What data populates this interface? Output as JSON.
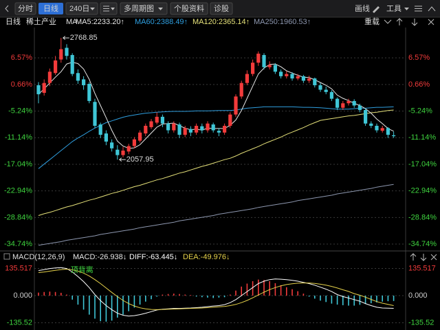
{
  "toolbar": {
    "left": [
      "分时",
      "日线",
      "240日",
      "多周期图",
      "个股资料",
      "诊股"
    ],
    "right": [
      "画线",
      "工具"
    ]
  },
  "header": {
    "period": "日线",
    "name": "稀土产业",
    "reload": "重载"
  },
  "chart_data": [
    {
      "type": "candlestick",
      "indicator": "MA",
      "up_color": "#f23b3b",
      "down_color": "#3fc6d6",
      "ohlc": [
        [
          0.5,
          1.2,
          -3.5,
          -1.5
        ],
        [
          -1.2,
          1.8,
          -1.8,
          1.0
        ],
        [
          1.0,
          4.2,
          0.3,
          3.5
        ],
        [
          3.2,
          7.0,
          2.8,
          6.0
        ],
        [
          6.2,
          11.0,
          5.5,
          8.5
        ],
        [
          8.8,
          9.6,
          6.2,
          7.0
        ],
        [
          7.2,
          7.6,
          2.5,
          3.0
        ],
        [
          3.2,
          4.0,
          0.8,
          1.5
        ],
        [
          1.8,
          2.5,
          -0.5,
          0.5
        ],
        [
          0.8,
          1.2,
          -3.5,
          -3.0
        ],
        [
          -3.2,
          -2.5,
          -9.0,
          -8.5
        ],
        [
          -8.2,
          -7.8,
          -11.2,
          -10.5
        ],
        [
          -10.2,
          -9.5,
          -12.8,
          -12.0
        ],
        [
          -12.2,
          -11.5,
          -14.2,
          -13.5
        ],
        [
          -13.8,
          -12.8,
          -16.0,
          -15.0
        ],
        [
          -15.0,
          -13.2,
          -15.5,
          -14.0
        ],
        [
          -14.2,
          -12.5,
          -14.8,
          -13.0
        ],
        [
          -13.0,
          -11.0,
          -13.5,
          -11.5
        ],
        [
          -11.8,
          -9.5,
          -12.2,
          -10.0
        ],
        [
          -10.2,
          -8.0,
          -10.8,
          -8.5
        ],
        [
          -8.8,
          -7.0,
          -9.2,
          -7.5
        ],
        [
          -7.8,
          -5.5,
          -8.2,
          -6.5
        ],
        [
          -6.5,
          -6.0,
          -8.8,
          -8.0
        ],
        [
          -8.0,
          -7.5,
          -10.2,
          -9.5
        ],
        [
          -9.5,
          -7.5,
          -10.0,
          -8.0
        ],
        [
          -8.2,
          -7.8,
          -11.2,
          -10.5
        ],
        [
          -10.5,
          -8.5,
          -11.0,
          -9.0
        ],
        [
          -9.2,
          -8.6,
          -10.8,
          -10.0
        ],
        [
          -10.0,
          -8.0,
          -10.5,
          -8.5
        ],
        [
          -8.6,
          -8.0,
          -10.2,
          -9.5
        ],
        [
          -9.5,
          -7.5,
          -10.0,
          -8.0
        ],
        [
          -8.2,
          -7.8,
          -10.0,
          -9.5
        ],
        [
          -9.6,
          -9.0,
          -10.8,
          -10.0
        ],
        [
          -10.0,
          -8.0,
          -10.5,
          -8.5
        ],
        [
          -8.5,
          -5.5,
          -9.0,
          -6.0
        ],
        [
          -6.0,
          -1.5,
          -6.5,
          -2.0
        ],
        [
          -2.0,
          1.5,
          -2.5,
          1.0
        ],
        [
          1.0,
          3.8,
          0.5,
          3.0
        ],
        [
          3.0,
          6.2,
          2.5,
          5.5
        ],
        [
          5.5,
          8.0,
          4.8,
          7.5
        ],
        [
          7.2,
          7.6,
          4.0,
          4.5
        ],
        [
          4.5,
          5.8,
          4.0,
          5.0
        ],
        [
          5.0,
          5.4,
          3.0,
          3.5
        ],
        [
          3.5,
          4.0,
          2.0,
          2.5
        ],
        [
          2.5,
          3.6,
          2.0,
          3.0
        ],
        [
          3.0,
          3.4,
          1.5,
          2.0
        ],
        [
          2.0,
          3.0,
          1.6,
          2.5
        ],
        [
          2.5,
          2.8,
          1.0,
          1.5
        ],
        [
          1.5,
          2.6,
          1.0,
          2.0
        ],
        [
          2.0,
          2.2,
          0.0,
          0.5
        ],
        [
          0.5,
          1.0,
          -1.0,
          -0.5
        ],
        [
          -0.5,
          0.2,
          -1.5,
          -1.0
        ],
        [
          -1.0,
          -0.6,
          -3.0,
          -2.5
        ],
        [
          -2.5,
          -2.2,
          -5.0,
          -4.5
        ],
        [
          -4.5,
          -3.0,
          -5.0,
          -3.5
        ],
        [
          -3.5,
          -2.5,
          -4.0,
          -3.0
        ],
        [
          -3.0,
          -2.6,
          -4.5,
          -4.0
        ],
        [
          -4.0,
          -3.6,
          -5.5,
          -5.0
        ],
        [
          -5.0,
          -4.6,
          -8.5,
          -8.0
        ],
        [
          -8.0,
          -7.5,
          -9.0,
          -8.5
        ],
        [
          -8.5,
          -8.0,
          -10.0,
          -9.5
        ],
        [
          -9.6,
          -8.5,
          -10.0,
          -9.0
        ],
        [
          -9.0,
          -8.8,
          -11.2,
          -10.5
        ],
        [
          -10.6,
          -9.8,
          -11.2,
          -10.8
        ]
      ],
      "series": [
        {
          "name": "MA5:2233.20↑",
          "color": "#e8e8e8",
          "values": [
            -1.5,
            -0.3,
            1.0,
            2.3,
            3.5,
            5.2,
            5.6,
            5.3,
            4.1,
            1.8,
            -1.3,
            -4.0,
            -6.7,
            -9.5,
            -11.9,
            -13.0,
            -13.5,
            -13.4,
            -12.7,
            -11.4,
            -10.1,
            -8.8,
            -8.1,
            -8.0,
            -7.9,
            -8.5,
            -9.0,
            -9.4,
            -9.2,
            -9.5,
            -9.0,
            -9.1,
            -9.1,
            -9.1,
            -8.4,
            -7.2,
            -5.1,
            -2.4,
            0.3,
            3.0,
            4.3,
            5.1,
            5.2,
            4.6,
            3.7,
            3.2,
            2.7,
            2.3,
            2.2,
            1.7,
            1.1,
            0.5,
            -0.3,
            -1.7,
            -2.4,
            -2.9,
            -3.5,
            -4.0,
            -4.7,
            -5.7,
            -7.0,
            -8.0,
            -9.1,
            -9.7
          ]
        },
        {
          "name": "MA60:2388.49↑",
          "color": "#2f9fe0",
          "values": [
            -18,
            -17,
            -16,
            -15,
            -14,
            -13,
            -12,
            -11.2,
            -10.5,
            -9.7,
            -9,
            -8.4,
            -7.8,
            -7.4,
            -7,
            -6.6,
            -6.3,
            -6.1,
            -5.9,
            -5.7,
            -5.6,
            -5.5,
            -5.4,
            -5.35,
            -5.3,
            -5.3,
            -5.3,
            -5.25,
            -5.2,
            -5.2,
            -5.2,
            -5.15,
            -5.1,
            -5.1,
            -5.1,
            -5,
            -4.8,
            -4.6,
            -4.5,
            -4.4,
            -4.3,
            -4.3,
            -4.3,
            -4.3,
            -4.3,
            -4.3,
            -4.35,
            -4.4,
            -4.4,
            -4.45,
            -4.5,
            -4.6,
            -4.7,
            -4.8,
            -4.8,
            -4.8,
            -4.7,
            -4.6,
            -4.6,
            -4.5,
            -4.4,
            -4.4,
            -4.35,
            -4.3
          ]
        },
        {
          "name": "MA120:2365.14↑",
          "color": "#e6e27a",
          "values": [
            -28.4,
            -28.0,
            -27.7,
            -27.3,
            -26.9,
            -26.5,
            -26.2,
            -25.8,
            -25.4,
            -25.0,
            -24.7,
            -24.3,
            -23.9,
            -23.5,
            -23.2,
            -22.8,
            -22.4,
            -22.0,
            -21.7,
            -21.3,
            -20.9,
            -20.5,
            -20.2,
            -19.8,
            -19.4,
            -19.0,
            -18.7,
            -18.3,
            -17.9,
            -17.5,
            -17.2,
            -16.8,
            -16.4,
            -16.0,
            -15.7,
            -15.2,
            -14.6,
            -14.1,
            -13.6,
            -13.1,
            -12.5,
            -12.0,
            -11.5,
            -11.0,
            -10.4,
            -9.9,
            -9.4,
            -8.9,
            -8.3,
            -7.8,
            -7.3,
            -7.1,
            -6.9,
            -6.7,
            -6.5,
            -6.3,
            -6.2,
            -6.0,
            -5.8,
            -5.6,
            -5.5,
            -5.3,
            -5.1,
            -5.0
          ]
        },
        {
          "name": "MA250:1960.53↑",
          "color": "#8e98b0",
          "values": [
            -35.0,
            -34.8,
            -34.6,
            -34.4,
            -34.2,
            -33.9,
            -33.7,
            -33.5,
            -33.3,
            -33.1,
            -32.9,
            -32.6,
            -32.4,
            -32.2,
            -32.0,
            -31.8,
            -31.6,
            -31.4,
            -31.1,
            -30.9,
            -30.7,
            -30.5,
            -30.3,
            -30.1,
            -29.9,
            -29.6,
            -29.4,
            -29.2,
            -29.0,
            -28.8,
            -28.6,
            -28.4,
            -28.1,
            -27.9,
            -27.7,
            -27.5,
            -27.3,
            -27.1,
            -26.9,
            -26.6,
            -26.4,
            -26.2,
            -26.0,
            -25.8,
            -25.6,
            -25.4,
            -25.1,
            -24.9,
            -24.7,
            -24.5,
            -24.3,
            -24.1,
            -23.9,
            -23.6,
            -23.4,
            -23.2,
            -23.0,
            -22.8,
            -22.6,
            -22.4,
            -22.1,
            -21.9,
            -21.7,
            -21.5
          ]
        }
      ],
      "ylim": [
        -35.8,
        13.0
      ],
      "yticks": [
        {
          "value": 6.57,
          "label": "6.57%"
        },
        {
          "value": 0.66,
          "label": "0.66%"
        },
        {
          "value": -5.24,
          "label": "-5.24%"
        },
        {
          "value": -11.14,
          "label": "-11.14%"
        },
        {
          "value": -17.04,
          "label": "-17.04%"
        },
        {
          "value": -22.94,
          "label": "-22.94%"
        },
        {
          "value": -28.84,
          "label": "-28.84%"
        },
        {
          "value": -34.74,
          "label": "-34.74%"
        }
      ],
      "annotations": [
        "2768.85",
        "2057.95"
      ],
      "grid": true
    },
    {
      "type": "macd",
      "title": "MACD(12,26,9)",
      "up_color": "#f23b3b",
      "down_color": "#3fc6d6",
      "annotation": "顶背离",
      "series": [
        {
          "name": "MACD:-26.938↓",
          "kind": "bar",
          "color": "#e8e8e8",
          "values": [
            15,
            18,
            20,
            18,
            14,
            5,
            -20,
            -45,
            -70,
            -95,
            -115,
            -128,
            -130,
            -125,
            -110,
            -95,
            -78,
            -60,
            -45,
            -30,
            -18,
            -5,
            5,
            8,
            10,
            8,
            5,
            3,
            -5,
            -8,
            -10,
            -12,
            -10,
            -8,
            5,
            25,
            45,
            60,
            72,
            80,
            78,
            72,
            62,
            52,
            42,
            32,
            22,
            10,
            -5,
            -15,
            -25,
            -32,
            -40,
            -45,
            -48,
            -50,
            -50,
            -46,
            -42,
            -38,
            -34,
            -30,
            -28,
            -26.938
          ]
        },
        {
          "name": "DIFF:-63.445↓",
          "kind": "line",
          "color": "#ffffff",
          "values": [
            125,
            130,
            135,
            138,
            140,
            135,
            118,
            95,
            70,
            40,
            5,
            -25,
            -50,
            -70,
            -88,
            -98,
            -102,
            -100,
            -95,
            -88,
            -80,
            -72,
            -68,
            -66,
            -64,
            -64,
            -63,
            -62,
            -60,
            -58,
            -55,
            -52,
            -50,
            -45,
            -35,
            -20,
            0,
            20,
            40,
            60,
            72,
            80,
            83,
            82,
            80,
            76,
            72,
            66,
            60,
            52,
            42,
            32,
            20,
            5,
            -5,
            -12,
            -20,
            -28,
            -40,
            -50,
            -58,
            -62,
            -63,
            -63.445
          ]
        },
        {
          "name": "DEA:-49.976↓",
          "kind": "line",
          "color": "#e6d24a",
          "values": [
            115,
            118,
            122,
            126,
            130,
            132,
            129,
            122,
            112,
            98,
            80,
            60,
            38,
            16,
            -5,
            -24,
            -40,
            -52,
            -61,
            -66,
            -69,
            -70,
            -69,
            -68,
            -67,
            -66,
            -65,
            -64,
            -63,
            -62,
            -60,
            -58,
            -56,
            -54,
            -50,
            -44,
            -35,
            -24,
            -11,
            3,
            17,
            30,
            40,
            49,
            55,
            59,
            62,
            63,
            63,
            61,
            57,
            52,
            46,
            38,
            29,
            21,
            10,
            2,
            -8,
            -19,
            -30,
            -38,
            -44,
            -49.976
          ]
        }
      ],
      "ylim": [
        -158,
        199
      ],
      "yticks": [
        135.517,
        {
          "value": 0,
          "label": "0.000"
        },
        -135.52
      ],
      "grid": true
    }
  ]
}
